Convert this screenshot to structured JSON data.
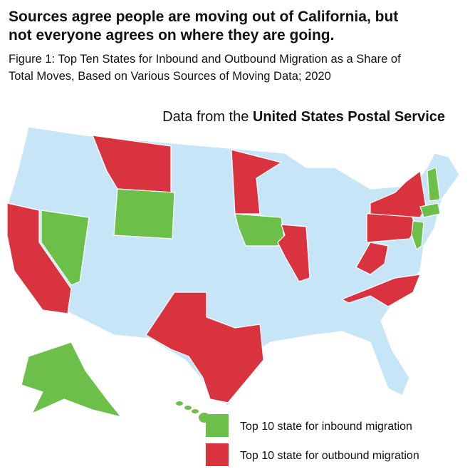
{
  "header": {
    "title_lines": [
      "Sources agree people are moving out of California, but",
      "not everyone agrees on where they are going."
    ],
    "subtitle_lines": [
      "Figure 1: Top Ten States for Inbound and Outbound Migration as a Share of",
      "Total Moves, Based on Various Sources of Moving Data; 2020"
    ]
  },
  "map": {
    "heading": {
      "prefix": "Data from the",
      "source": "United States Postal Service"
    },
    "base_color": "#c6e6f7",
    "legend": [
      {
        "label": "Top 10 state for inbound migration",
        "color": "#6cc04a"
      },
      {
        "label": "Top 10 state for outbound migration",
        "color": "#d9333f"
      }
    ]
  }
}
